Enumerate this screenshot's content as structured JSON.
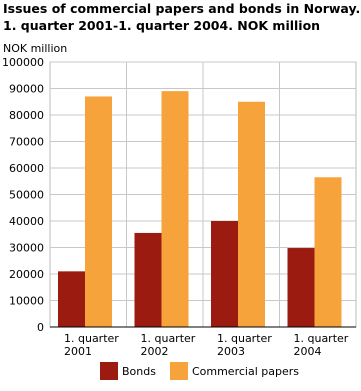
{
  "chart_data": {
    "type": "bar",
    "title": "Issues of commercial papers and bonds in Norway.",
    "subtitle": "1. quarter 2001-1. quarter 2004. NOK million",
    "y_label": "NOK million",
    "categories": [
      "1. quarter 2001",
      "1. quarter 2002",
      "1. quarter 2003",
      "1. quarter 2004"
    ],
    "series": [
      {
        "name": "Bonds",
        "color": "#9b1b10",
        "values": [
          21000,
          35500,
          40000,
          29800
        ]
      },
      {
        "name": "Commercial papers",
        "color": "#f6a33b",
        "values": [
          87000,
          89000,
          85000,
          56500
        ]
      }
    ],
    "ylim": [
      0,
      100000
    ],
    "yticks": [
      0,
      10000,
      20000,
      30000,
      40000,
      50000,
      60000,
      70000,
      80000,
      90000,
      100000
    ],
    "grid": true
  }
}
